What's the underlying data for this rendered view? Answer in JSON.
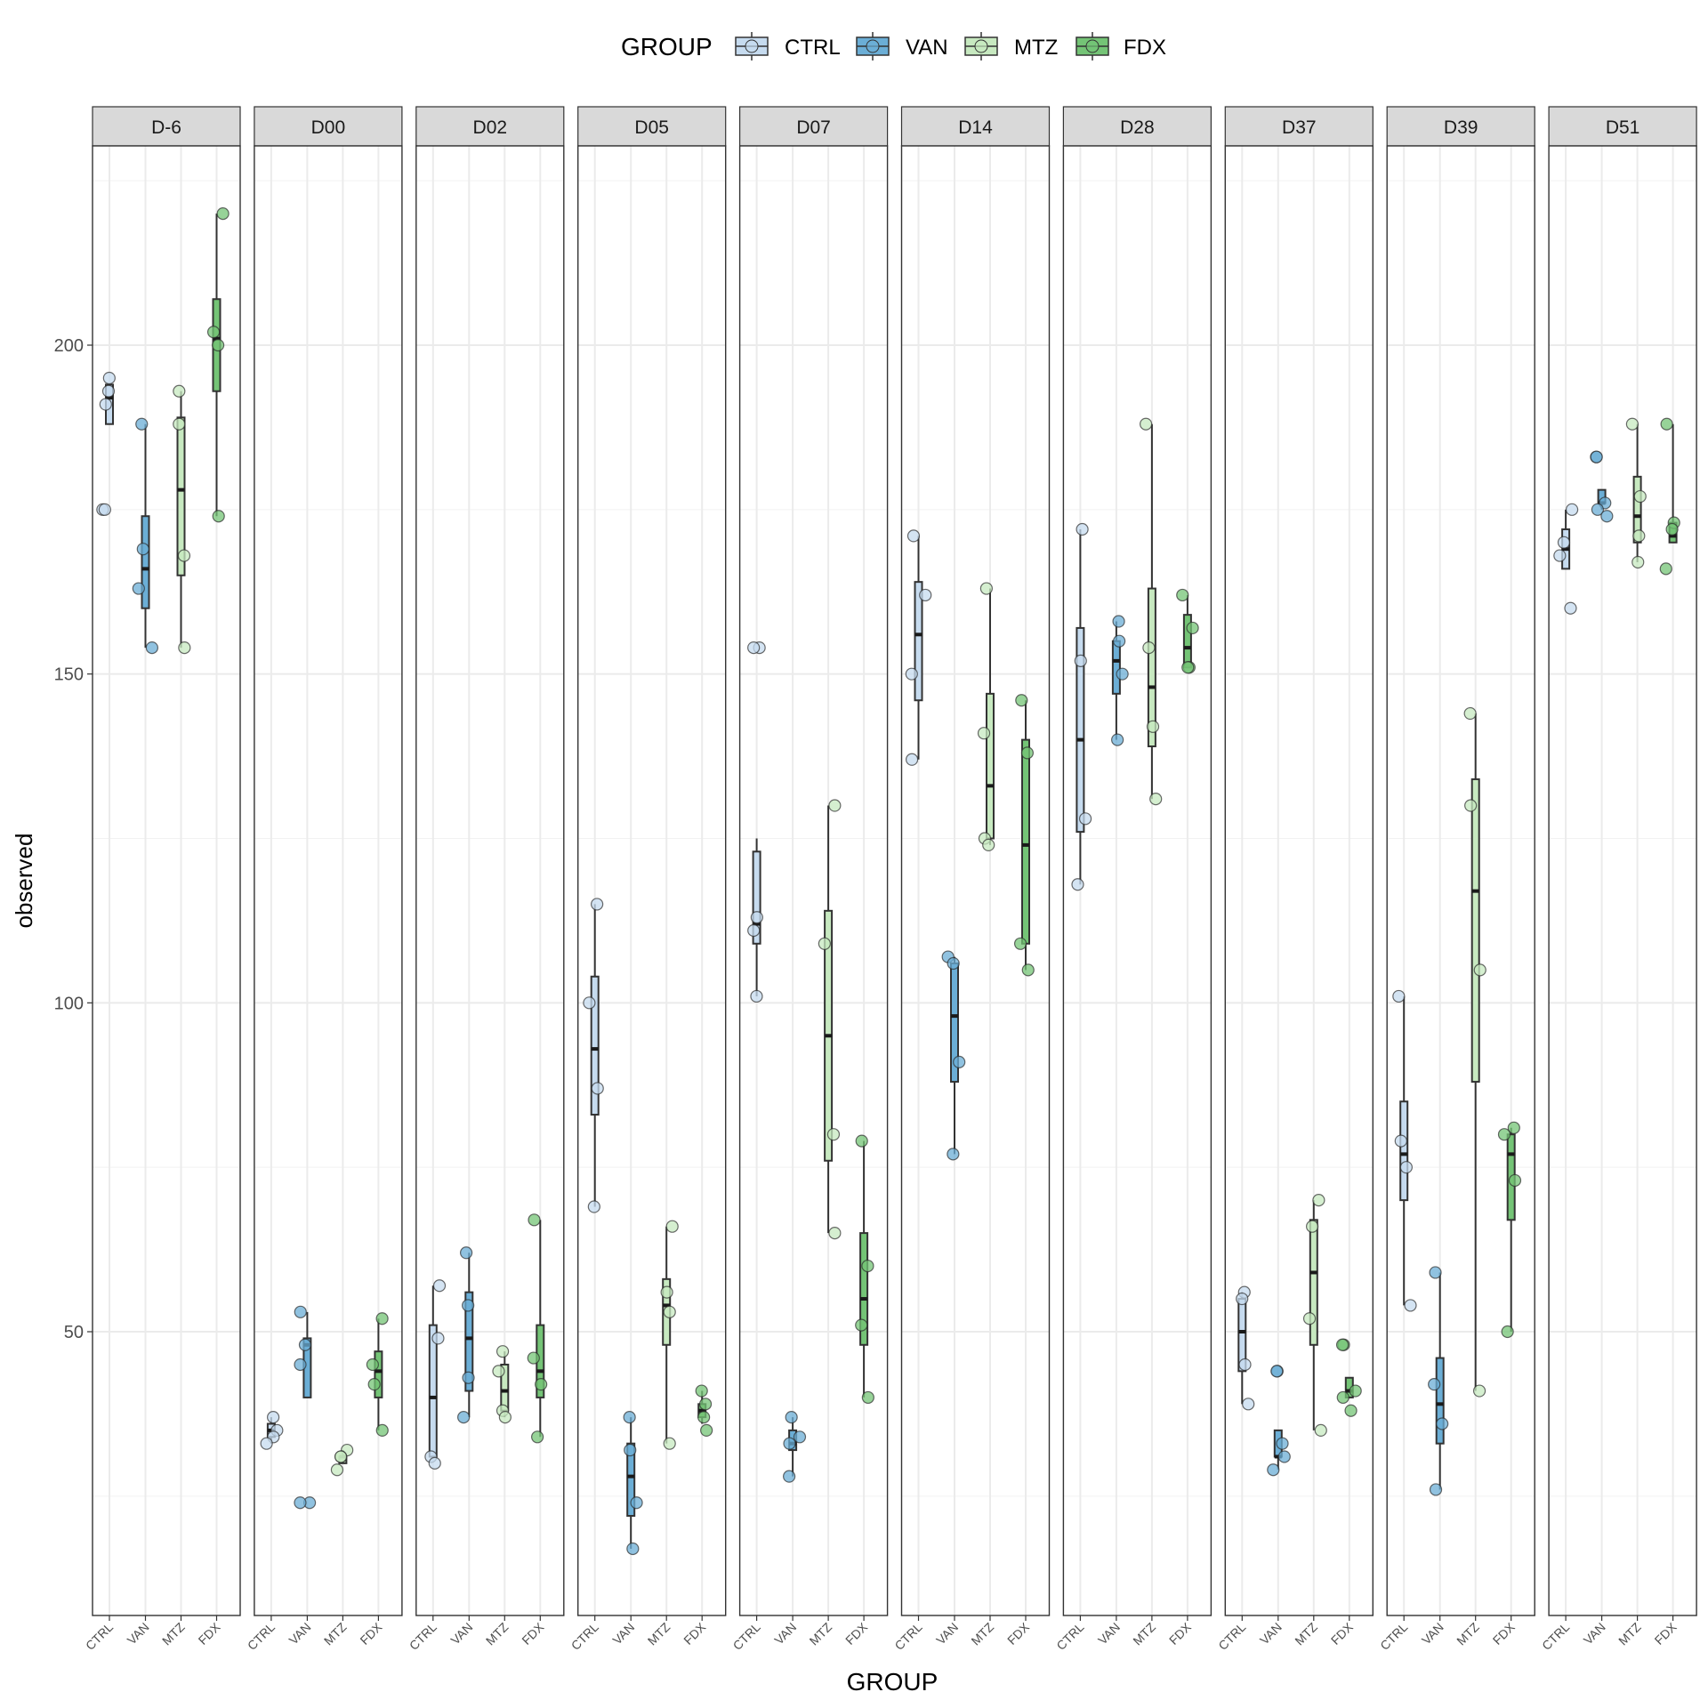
{
  "chart_data": {
    "type": "box",
    "ylabel": "observed",
    "xlabel": "GROUP",
    "legend": {
      "title": "GROUP",
      "position": "top",
      "entries": [
        "CTRL",
        "VAN",
        "MTZ",
        "FDX"
      ]
    },
    "groups": [
      "CTRL",
      "VAN",
      "MTZ",
      "FDX"
    ],
    "colors": {
      "CTRL": "#c6dbef",
      "VAN": "#6baed6",
      "MTZ": "#c7e9c0",
      "FDX": "#74c476"
    },
    "y_ticks": [
      50,
      100,
      150,
      200
    ],
    "ylim": [
      7,
      230
    ],
    "grid": true,
    "panels": [
      {
        "label": "D-6",
        "boxes": {
          "CTRL": {
            "q1": 188,
            "median": 192,
            "q3": 194,
            "whisker_low": 188,
            "whisker_high": 194,
            "points": [
              193,
              195,
              191,
              175,
              175
            ]
          },
          "VAN": {
            "q1": 160,
            "median": 166,
            "q3": 174,
            "whisker_low": 154,
            "whisker_high": 188,
            "points": [
              188,
              169,
              163,
              154
            ]
          },
          "MTZ": {
            "q1": 165,
            "median": 178,
            "q3": 189,
            "whisker_low": 154,
            "whisker_high": 193,
            "points": [
              193,
              188,
              168,
              154
            ]
          },
          "FDX": {
            "q1": 193,
            "median": 201,
            "q3": 207,
            "whisker_low": 174,
            "whisker_high": 220,
            "points": [
              220,
              202,
              200,
              174
            ]
          }
        }
      },
      {
        "label": "D00",
        "boxes": {
          "CTRL": {
            "q1": 34,
            "median": 35,
            "q3": 36,
            "whisker_low": 33,
            "whisker_high": 37,
            "points": [
              37,
              35,
              34,
              33
            ]
          },
          "VAN": {
            "q1": 40,
            "median": 48,
            "q3": 49,
            "whisker_low": 40,
            "whisker_high": 53,
            "points": [
              53,
              48,
              45,
              24,
              24
            ]
          },
          "MTZ": {
            "q1": 30,
            "median": 31,
            "q3": 31,
            "whisker_low": 30,
            "whisker_high": 32,
            "points": [
              32,
              31,
              31,
              29
            ]
          },
          "FDX": {
            "q1": 40,
            "median": 44,
            "q3": 47,
            "whisker_low": 35,
            "whisker_high": 52,
            "points": [
              52,
              45,
              42,
              35
            ]
          }
        }
      },
      {
        "label": "D02",
        "boxes": {
          "CTRL": {
            "q1": 31,
            "median": 40,
            "q3": 51,
            "whisker_low": 31,
            "whisker_high": 57,
            "points": [
              57,
              49,
              31,
              30
            ]
          },
          "VAN": {
            "q1": 41,
            "median": 49,
            "q3": 56,
            "whisker_low": 37,
            "whisker_high": 62,
            "points": [
              62,
              54,
              43,
              37
            ]
          },
          "MTZ": {
            "q1": 38,
            "median": 41,
            "q3": 45,
            "whisker_low": 37,
            "whisker_high": 47,
            "points": [
              47,
              44,
              38,
              37
            ]
          },
          "FDX": {
            "q1": 40,
            "median": 44,
            "q3": 51,
            "whisker_low": 34,
            "whisker_high": 67,
            "points": [
              67,
              46,
              42,
              34
            ]
          }
        }
      },
      {
        "label": "D05",
        "boxes": {
          "CTRL": {
            "q1": 83,
            "median": 93,
            "q3": 104,
            "whisker_low": 69,
            "whisker_high": 115,
            "points": [
              115,
              100,
              87,
              69
            ]
          },
          "VAN": {
            "q1": 22,
            "median": 28,
            "q3": 33,
            "whisker_low": 17,
            "whisker_high": 37,
            "points": [
              37,
              32,
              24,
              17
            ]
          },
          "MTZ": {
            "q1": 48,
            "median": 54,
            "q3": 58,
            "whisker_low": 33,
            "whisker_high": 66,
            "points": [
              66,
              56,
              53,
              33
            ]
          },
          "FDX": {
            "q1": 37,
            "median": 38,
            "q3": 39,
            "whisker_low": 36,
            "whisker_high": 41,
            "points": [
              41,
              39,
              37,
              35
            ]
          }
        }
      },
      {
        "label": "D07",
        "boxes": {
          "CTRL": {
            "q1": 109,
            "median": 112,
            "q3": 123,
            "whisker_low": 101,
            "whisker_high": 125,
            "points": [
              154,
              154,
              113,
              111,
              101
            ]
          },
          "VAN": {
            "q1": 32,
            "median": 33,
            "q3": 35,
            "whisker_low": 28,
            "whisker_high": 37,
            "points": [
              37,
              34,
              33,
              28
            ]
          },
          "MTZ": {
            "q1": 76,
            "median": 95,
            "q3": 114,
            "whisker_low": 65,
            "whisker_high": 130,
            "points": [
              130,
              109,
              80,
              65
            ]
          },
          "FDX": {
            "q1": 48,
            "median": 55,
            "q3": 65,
            "whisker_low": 40,
            "whisker_high": 79,
            "points": [
              79,
              60,
              51,
              40
            ]
          }
        }
      },
      {
        "label": "D14",
        "boxes": {
          "CTRL": {
            "q1": 146,
            "median": 156,
            "q3": 164,
            "whisker_low": 137,
            "whisker_high": 171,
            "points": [
              171,
              162,
              150,
              137
            ]
          },
          "VAN": {
            "q1": 88,
            "median": 98,
            "q3": 106,
            "whisker_low": 77,
            "whisker_high": 107,
            "points": [
              107,
              106,
              91,
              77
            ]
          },
          "MTZ": {
            "q1": 125,
            "median": 133,
            "q3": 147,
            "whisker_low": 124,
            "whisker_high": 163,
            "points": [
              163,
              141,
              125,
              124
            ]
          },
          "FDX": {
            "q1": 109,
            "median": 124,
            "q3": 140,
            "whisker_low": 105,
            "whisker_high": 146,
            "points": [
              146,
              138,
              109,
              105
            ]
          }
        }
      },
      {
        "label": "D28",
        "boxes": {
          "CTRL": {
            "q1": 126,
            "median": 140,
            "q3": 157,
            "whisker_low": 118,
            "whisker_high": 172,
            "points": [
              172,
              152,
              128,
              118
            ]
          },
          "VAN": {
            "q1": 147,
            "median": 152,
            "q3": 155,
            "whisker_low": 140,
            "whisker_high": 158,
            "points": [
              158,
              155,
              150,
              140
            ]
          },
          "MTZ": {
            "q1": 139,
            "median": 148,
            "q3": 163,
            "whisker_low": 131,
            "whisker_high": 188,
            "points": [
              188,
              154,
              142,
              131
            ]
          },
          "FDX": {
            "q1": 151,
            "median": 154,
            "q3": 159,
            "whisker_low": 151,
            "whisker_high": 162,
            "points": [
              162,
              157,
              151,
              151
            ]
          }
        }
      },
      {
        "label": "D37",
        "boxes": {
          "CTRL": {
            "q1": 44,
            "median": 50,
            "q3": 55,
            "whisker_low": 39,
            "whisker_high": 56,
            "points": [
              56,
              55,
              45,
              39
            ]
          },
          "VAN": {
            "q1": 31,
            "median": 31,
            "q3": 35,
            "whisker_low": 29,
            "whisker_high": 35,
            "points": [
              44,
              44,
              33,
              31,
              29
            ]
          },
          "MTZ": {
            "q1": 48,
            "median": 59,
            "q3": 67,
            "whisker_low": 35,
            "whisker_high": 70,
            "points": [
              70,
              66,
              52,
              35
            ]
          },
          "FDX": {
            "q1": 40,
            "median": 41,
            "q3": 43,
            "whisker_low": 40,
            "whisker_high": 43,
            "points": [
              48,
              48,
              41,
              40,
              38
            ]
          }
        }
      },
      {
        "label": "D39",
        "boxes": {
          "CTRL": {
            "q1": 70,
            "median": 77,
            "q3": 85,
            "whisker_low": 54,
            "whisker_high": 101,
            "points": [
              101,
              79,
              75,
              54
            ]
          },
          "VAN": {
            "q1": 33,
            "median": 39,
            "q3": 46,
            "whisker_low": 26,
            "whisker_high": 59,
            "points": [
              59,
              42,
              36,
              26
            ]
          },
          "MTZ": {
            "q1": 88,
            "median": 117,
            "q3": 134,
            "whisker_low": 41,
            "whisker_high": 144,
            "points": [
              144,
              130,
              105,
              41
            ]
          },
          "FDX": {
            "q1": 67,
            "median": 77,
            "q3": 80,
            "whisker_low": 50,
            "whisker_high": 81,
            "points": [
              81,
              80,
              73,
              50
            ]
          }
        }
      },
      {
        "label": "D51",
        "boxes": {
          "CTRL": {
            "q1": 166,
            "median": 169,
            "q3": 172,
            "whisker_low": 166,
            "whisker_high": 175,
            "points": [
              175,
              170,
              168,
              160
            ]
          },
          "VAN": {
            "q1": 176,
            "median": 176,
            "q3": 178,
            "whisker_low": 175,
            "whisker_high": 178,
            "points": [
              183,
              183,
              176,
              175,
              174
            ]
          },
          "MTZ": {
            "q1": 170,
            "median": 174,
            "q3": 180,
            "whisker_low": 167,
            "whisker_high": 188,
            "points": [
              188,
              177,
              171,
              167
            ]
          },
          "FDX": {
            "q1": 170,
            "median": 171,
            "q3": 173,
            "whisker_low": 170,
            "whisker_high": 188,
            "points": [
              188,
              173,
              172,
              166
            ]
          }
        }
      }
    ]
  }
}
